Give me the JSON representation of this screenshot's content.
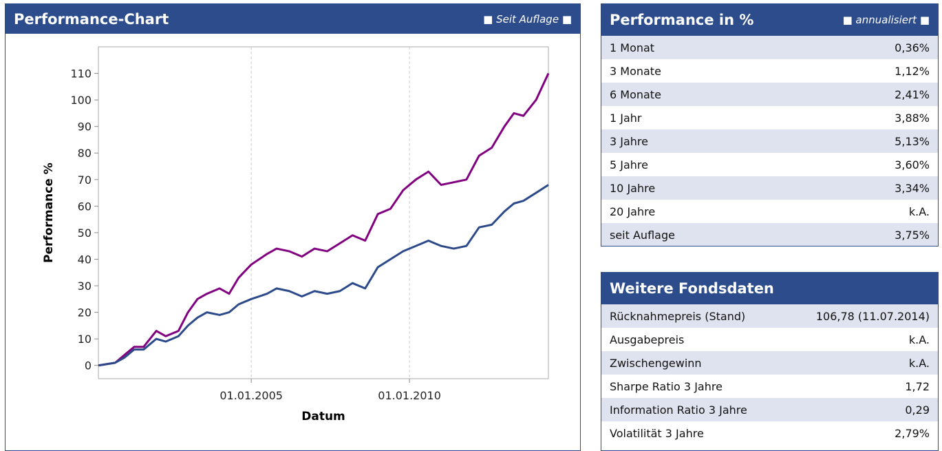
{
  "chart_panel": {
    "title": "Performance-Chart",
    "badge": "Seit Auflage"
  },
  "chart_data": {
    "type": "line",
    "xlabel": "Datum",
    "ylabel": "Performance %",
    "x": [
      2000.17,
      2000.7,
      2001.0,
      2001.3,
      2001.6,
      2002.0,
      2002.3,
      2002.7,
      2003.0,
      2003.3,
      2003.6,
      2004.0,
      2004.3,
      2004.6,
      2005.0,
      2005.5,
      2005.8,
      2006.2,
      2006.6,
      2007.0,
      2007.4,
      2007.8,
      2008.2,
      2008.6,
      2009.0,
      2009.4,
      2009.8,
      2010.2,
      2010.6,
      2011.0,
      2011.4,
      2011.8,
      2012.2,
      2012.6,
      2013.0,
      2013.3,
      2013.6,
      2014.0,
      2014.39
    ],
    "series": [
      {
        "color": "#800080",
        "values": [
          0,
          1,
          4,
          7,
          7,
          13,
          11,
          13,
          20,
          25,
          27,
          29,
          27,
          33,
          38,
          42,
          44,
          43,
          41,
          44,
          43,
          46,
          49,
          47,
          57,
          59,
          66,
          70,
          73,
          68,
          69,
          70,
          79,
          82,
          90,
          95,
          94,
          100,
          110
        ]
      },
      {
        "color": "#2c4a8a",
        "values": [
          0,
          1,
          3,
          6,
          6,
          10,
          9,
          11,
          15,
          18,
          20,
          19,
          20,
          23,
          25,
          27,
          29,
          28,
          26,
          28,
          27,
          28,
          31,
          29,
          37,
          40,
          43,
          45,
          47,
          45,
          44,
          45,
          52,
          53,
          58,
          61,
          62,
          65,
          68
        ]
      }
    ],
    "xlim": [
      2000.17,
      2014.39
    ],
    "xticks": [
      {
        "value": 2005,
        "label": "01.01.2005"
      },
      {
        "value": 2010,
        "label": "01.01.2010"
      }
    ],
    "ylim": [
      -5,
      120
    ],
    "yticks": [
      0,
      10,
      20,
      30,
      40,
      50,
      60,
      70,
      80,
      90,
      100,
      110
    ],
    "xgrid": true
  },
  "performance": {
    "title": "Performance in %",
    "badge": "annualisiert",
    "rows": [
      [
        "1 Monat",
        "0,36%"
      ],
      [
        "3 Monate",
        "1,12%"
      ],
      [
        "6 Monate",
        "2,41%"
      ],
      [
        "1 Jahr",
        "3,88%"
      ],
      [
        "3 Jahre",
        "5,13%"
      ],
      [
        "5 Jahre",
        "3,60%"
      ],
      [
        "10 Jahre",
        "3,34%"
      ],
      [
        "20 Jahre",
        "k.A."
      ],
      [
        "seit Auflage",
        "3,75%"
      ]
    ]
  },
  "fondsdaten": {
    "title": "Weitere Fondsdaten",
    "rows": [
      [
        "Rücknahmepreis (Stand)",
        "106,78 (11.07.2014)"
      ],
      [
        "Ausgabepreis",
        "k.A."
      ],
      [
        "Zwischengewinn",
        "k.A."
      ],
      [
        "Sharpe Ratio 3 Jahre",
        "1,72"
      ],
      [
        "Information Ratio 3 Jahre",
        "0,29"
      ],
      [
        "Volatilität 3 Jahre",
        "2,79%"
      ]
    ]
  }
}
